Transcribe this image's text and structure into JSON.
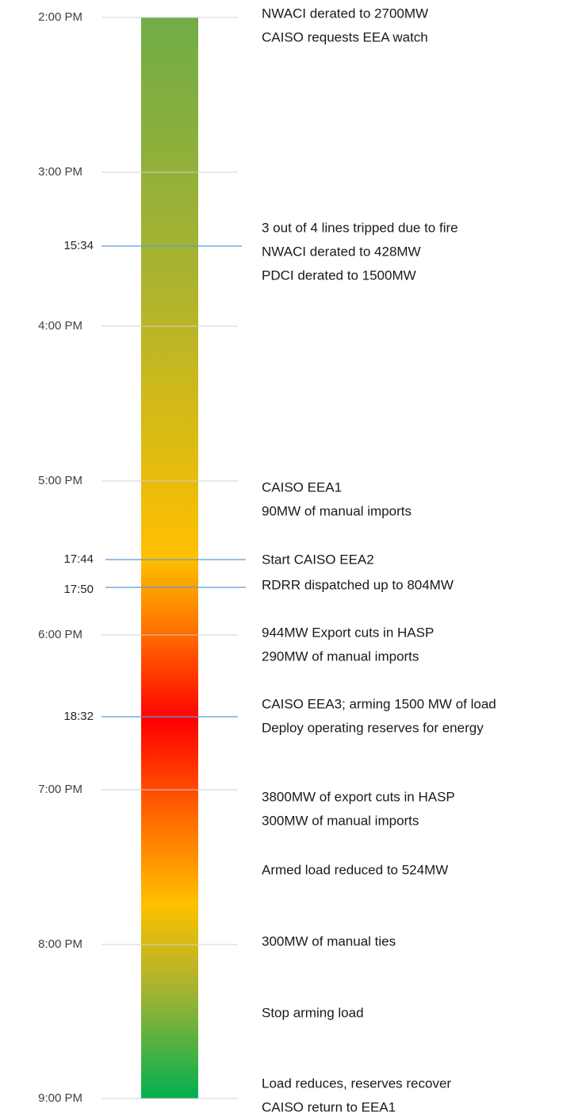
{
  "hours": [
    "2:00 PM",
    "3:00 PM",
    "4:00 PM",
    "5:00 PM",
    "6:00 PM",
    "7:00 PM",
    "8:00 PM",
    "9:00 PM"
  ],
  "markers": [
    "15:34",
    "17:44",
    "17:50",
    "18:32"
  ],
  "events": [
    {
      "lines": [
        "NWACI derated to 2700MW",
        "CAISO requests EEA watch"
      ]
    },
    {
      "lines": [
        "3 out of 4 lines tripped due to fire",
        "NWACI derated to 428MW",
        "PDCI derated to 1500MW"
      ]
    },
    {
      "lines": [
        "CAISO EEA1",
        "90MW of manual imports"
      ]
    },
    {
      "lines": [
        "Start CAISO EEA2"
      ]
    },
    {
      "lines": [
        "RDRR dispatched up to 804MW"
      ]
    },
    {
      "lines": [
        "944MW Export cuts in HASP",
        "290MW of manual imports"
      ]
    },
    {
      "lines": [
        "CAISO EEA3; arming 1500 MW of load",
        "Deploy operating reserves for energy"
      ]
    },
    {
      "lines": [
        "3800MW of export cuts in HASP",
        "300MW of manual imports"
      ]
    },
    {
      "lines": [
        "Armed load reduced to 524MW"
      ]
    },
    {
      "lines": [
        "300MW of manual ties"
      ]
    },
    {
      "lines": [
        "Stop arming load"
      ]
    },
    {
      "lines": [
        "Load reduces, reserves recover",
        "CAISO return to EEA1"
      ]
    }
  ]
}
